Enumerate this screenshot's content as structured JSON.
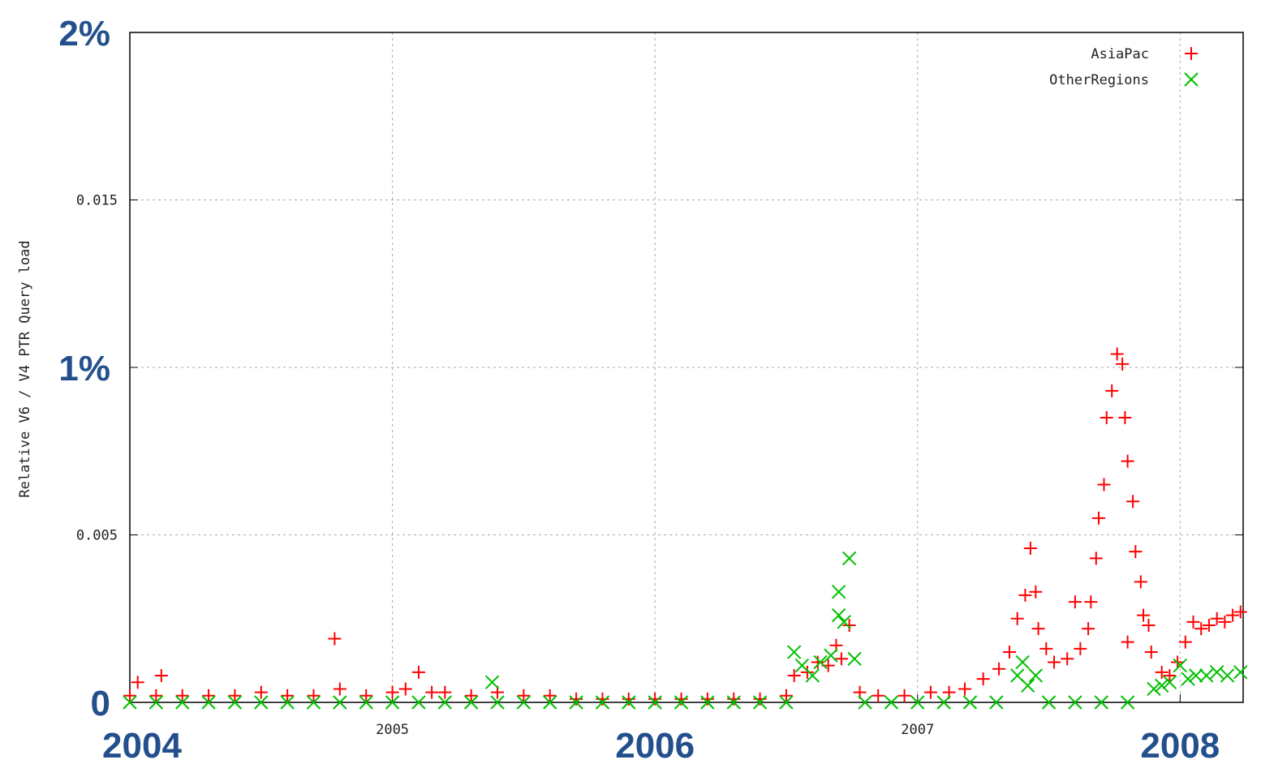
{
  "chart_data": {
    "type": "scatter",
    "y_label": "Relative V6 / V4 PTR Query load",
    "xlim": [
      2004,
      2008.24
    ],
    "xticks": [
      2004,
      2005,
      2006,
      2007,
      2008
    ],
    "ylim": [
      0,
      0.02
    ],
    "yticks": [
      0,
      0.005,
      {
        "value": 0.01,
        "label": "1%"
      },
      0.015,
      {
        "value": 0.02,
        "label": "2%"
      }
    ],
    "grid": true,
    "legend": "upper right",
    "series": [
      {
        "name": "AsiaPac",
        "color": "#ff0000",
        "marker": "+",
        "x": [
          2004.0,
          2004.03,
          2004.1,
          2004.12,
          2004.2,
          2004.3,
          2004.4,
          2004.5,
          2004.6,
          2004.7,
          2004.78,
          2004.8,
          2004.9,
          2005.0,
          2005.05,
          2005.1,
          2005.15,
          2005.2,
          2005.3,
          2005.4,
          2005.5,
          2005.6,
          2005.7,
          2005.8,
          2005.9,
          2006.0,
          2006.1,
          2006.2,
          2006.3,
          2006.4,
          2006.5,
          2006.53,
          2006.58,
          2006.62,
          2006.66,
          2006.69,
          2006.71,
          2006.74,
          2006.78,
          2006.85,
          2006.95,
          2007.05,
          2007.12,
          2007.18,
          2007.25,
          2007.31,
          2007.35,
          2007.38,
          2007.41,
          2007.43,
          2007.45,
          2007.46,
          2007.49,
          2007.52,
          2007.57,
          2007.6,
          2007.62,
          2007.65,
          2007.66,
          2007.68,
          2007.69,
          2007.71,
          2007.72,
          2007.74,
          2007.76,
          2007.78,
          2007.79,
          2007.8,
          2007.8,
          2007.82,
          2007.83,
          2007.85,
          2007.86,
          2007.88,
          2007.89,
          2007.93,
          2007.96,
          2007.99,
          2008.02,
          2008.05,
          2008.08,
          2008.11,
          2008.14,
          2008.17,
          2008.2,
          2008.23
        ],
        "values": [
          0.0002,
          0.0006,
          0.0002,
          0.0008,
          0.0002,
          0.0002,
          0.0002,
          0.0003,
          0.0002,
          0.0002,
          0.0019,
          0.0004,
          0.0002,
          0.0003,
          0.0004,
          0.0009,
          0.0003,
          0.0003,
          0.0002,
          0.0003,
          0.0002,
          0.0002,
          0.0001,
          0.0001,
          0.0001,
          0.0001,
          0.0001,
          0.0001,
          0.0001,
          0.0001,
          0.0002,
          0.0008,
          0.0009,
          0.0012,
          0.0011,
          0.0017,
          0.0013,
          0.0023,
          0.0003,
          0.0002,
          0.0002,
          0.0003,
          0.0003,
          0.0004,
          0.0007,
          0.001,
          0.0015,
          0.0025,
          0.0032,
          0.0046,
          0.0033,
          0.0022,
          0.0016,
          0.0012,
          0.0013,
          0.003,
          0.0016,
          0.0022,
          0.003,
          0.0043,
          0.0055,
          0.0065,
          0.0085,
          0.0093,
          0.0104,
          0.0101,
          0.0085,
          0.0072,
          0.0018,
          0.006,
          0.0045,
          0.0036,
          0.0026,
          0.0023,
          0.0015,
          0.0009,
          0.0008,
          0.0012,
          0.0018,
          0.0024,
          0.0022,
          0.0023,
          0.0025,
          0.0024,
          0.0026,
          0.0027
        ]
      },
      {
        "name": "OtherRegions",
        "color": "#00c000",
        "marker": "x",
        "x": [
          2004.0,
          2004.1,
          2004.2,
          2004.3,
          2004.4,
          2004.5,
          2004.6,
          2004.7,
          2004.8,
          2004.9,
          2005.0,
          2005.1,
          2005.2,
          2005.3,
          2005.38,
          2005.4,
          2005.5,
          2005.6,
          2005.7,
          2005.8,
          2005.9,
          2006.0,
          2006.1,
          2006.2,
          2006.3,
          2006.4,
          2006.5,
          2006.53,
          2006.56,
          2006.6,
          2006.63,
          2006.67,
          2006.7,
          2006.7,
          2006.72,
          2006.74,
          2006.76,
          2006.8,
          2006.9,
          2007.0,
          2007.1,
          2007.2,
          2007.3,
          2007.38,
          2007.4,
          2007.42,
          2007.45,
          2007.5,
          2007.6,
          2007.7,
          2007.8,
          2007.9,
          2007.93,
          2007.96,
          2008.0,
          2008.03,
          2008.06,
          2008.1,
          2008.14,
          2008.18,
          2008.23
        ],
        "values": [
          0,
          0,
          0,
          0,
          0,
          0,
          0,
          0,
          0,
          0,
          0,
          0,
          0,
          0,
          0.0006,
          0,
          0,
          0,
          0,
          0,
          0,
          0,
          0,
          0,
          0,
          0,
          0,
          0.0015,
          0.0011,
          0.0008,
          0.0012,
          0.0014,
          0.0033,
          0.0026,
          0.0024,
          0.0043,
          0.0013,
          0,
          0,
          0,
          0,
          0,
          0,
          0.0008,
          0.0012,
          0.0005,
          0.0008,
          0,
          0,
          0,
          0,
          0.0004,
          0.0005,
          0.0006,
          0.0011,
          0.0007,
          0.0008,
          0.0008,
          0.0009,
          0.0008,
          0.0009
        ]
      }
    ]
  }
}
